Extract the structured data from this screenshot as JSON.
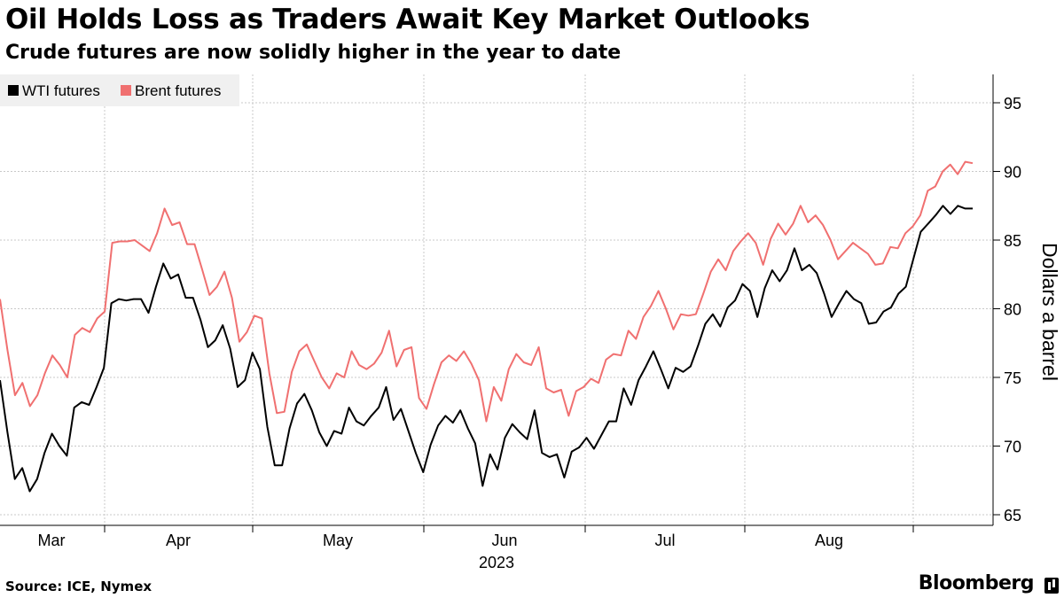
{
  "header": {
    "title": "Oil Holds Loss as Traders Await Key Market Outlooks",
    "subtitle": "Crude futures are now solidly higher in the year to date"
  },
  "footer": {
    "source": "Source: ICE, Nymex",
    "brand": "Bloomberg"
  },
  "chart_data": {
    "type": "line",
    "title": "Oil Holds Loss as Traders Await Key Market Outlooks",
    "subtitle": "Crude futures are now solidly higher in the year to date",
    "ylabel": "Dollars a barrel",
    "xlabel": "2023",
    "ylim": [
      64,
      97
    ],
    "yticks": [
      65,
      70,
      75,
      80,
      85,
      90,
      95
    ],
    "x_tick_labels": [
      "Mar",
      "Apr",
      "May",
      "Jun",
      "Jul",
      "Aug"
    ],
    "year_label": "2023",
    "grid": true,
    "legend_position": "top-left",
    "colors": {
      "wti": "#000000",
      "brent": "#f07070",
      "legend_bg": "#f0f0f0",
      "grid": "#c8c8c8"
    },
    "series": [
      {
        "name": "WTI futures",
        "color": "#000000",
        "values": [
          74.8,
          71.0,
          67.6,
          68.4,
          66.7,
          67.6,
          69.5,
          70.9,
          70.0,
          69.3,
          72.8,
          73.2,
          73.0,
          74.3,
          75.7,
          80.4,
          80.7,
          80.6,
          80.7,
          80.7,
          79.7,
          81.6,
          83.3,
          82.2,
          82.5,
          80.8,
          80.8,
          79.2,
          77.2,
          77.7,
          78.8,
          77.1,
          74.3,
          74.8,
          76.8,
          75.6,
          71.4,
          68.6,
          68.6,
          71.3,
          73.1,
          73.8,
          72.6,
          71.0,
          70.0,
          71.1,
          70.9,
          72.8,
          71.8,
          71.5,
          72.2,
          72.8,
          74.3,
          71.9,
          72.7,
          71.1,
          69.5,
          68.1,
          70.1,
          71.5,
          72.2,
          71.7,
          72.6,
          71.3,
          70.2,
          67.1,
          69.4,
          68.3,
          70.6,
          71.6,
          71.0,
          70.5,
          72.6,
          69.5,
          69.2,
          69.4,
          67.7,
          69.6,
          69.9,
          70.6,
          69.8,
          70.8,
          71.8,
          71.8,
          74.2,
          73.0,
          74.8,
          75.8,
          76.9,
          75.6,
          74.2,
          75.7,
          75.4,
          75.8,
          77.3,
          78.9,
          79.6,
          78.7,
          80.1,
          80.6,
          81.8,
          81.3,
          79.4,
          81.5,
          82.8,
          82.0,
          82.8,
          84.4,
          82.8,
          83.2,
          82.6,
          81.1,
          79.4,
          80.4,
          81.3,
          80.7,
          80.4,
          78.9,
          79.0,
          79.8,
          80.1,
          81.1,
          81.6,
          83.6,
          85.6,
          86.2,
          86.8,
          87.5,
          86.9,
          87.5,
          87.3,
          87.3
        ]
      },
      {
        "name": "Brent futures",
        "color": "#f07070",
        "values": [
          80.7,
          77.0,
          73.7,
          74.6,
          72.9,
          73.7,
          75.3,
          76.6,
          75.9,
          75.0,
          78.1,
          78.6,
          78.3,
          79.3,
          79.8,
          84.8,
          84.9,
          84.9,
          85.0,
          84.6,
          84.2,
          85.5,
          87.3,
          86.1,
          86.3,
          84.7,
          84.7,
          82.9,
          81.0,
          81.6,
          82.7,
          80.8,
          77.6,
          78.3,
          79.5,
          79.3,
          75.3,
          72.4,
          72.5,
          75.4,
          76.9,
          77.4,
          76.2,
          75.0,
          74.2,
          75.3,
          75.0,
          76.9,
          75.9,
          75.6,
          76.0,
          76.8,
          78.4,
          75.8,
          77.0,
          77.2,
          73.5,
          72.7,
          74.5,
          76.1,
          76.6,
          76.2,
          76.9,
          76.0,
          74.8,
          71.8,
          74.3,
          73.3,
          75.6,
          76.7,
          76.1,
          75.9,
          77.2,
          74.2,
          73.9,
          74.1,
          72.2,
          74.0,
          74.3,
          74.9,
          74.6,
          76.3,
          76.7,
          76.6,
          78.4,
          77.8,
          79.4,
          80.2,
          81.3,
          80.0,
          78.5,
          79.6,
          79.5,
          79.6,
          81.1,
          82.7,
          83.6,
          82.8,
          84.2,
          84.9,
          85.5,
          84.8,
          83.2,
          85.1,
          86.2,
          85.4,
          86.2,
          87.5,
          86.3,
          86.8,
          86.1,
          85.0,
          83.6,
          84.2,
          84.8,
          84.4,
          84.0,
          83.2,
          83.3,
          84.5,
          84.4,
          85.5,
          86.0,
          86.8,
          88.6,
          88.9,
          90.0,
          90.5,
          89.8,
          90.7,
          90.6
        ]
      }
    ]
  }
}
